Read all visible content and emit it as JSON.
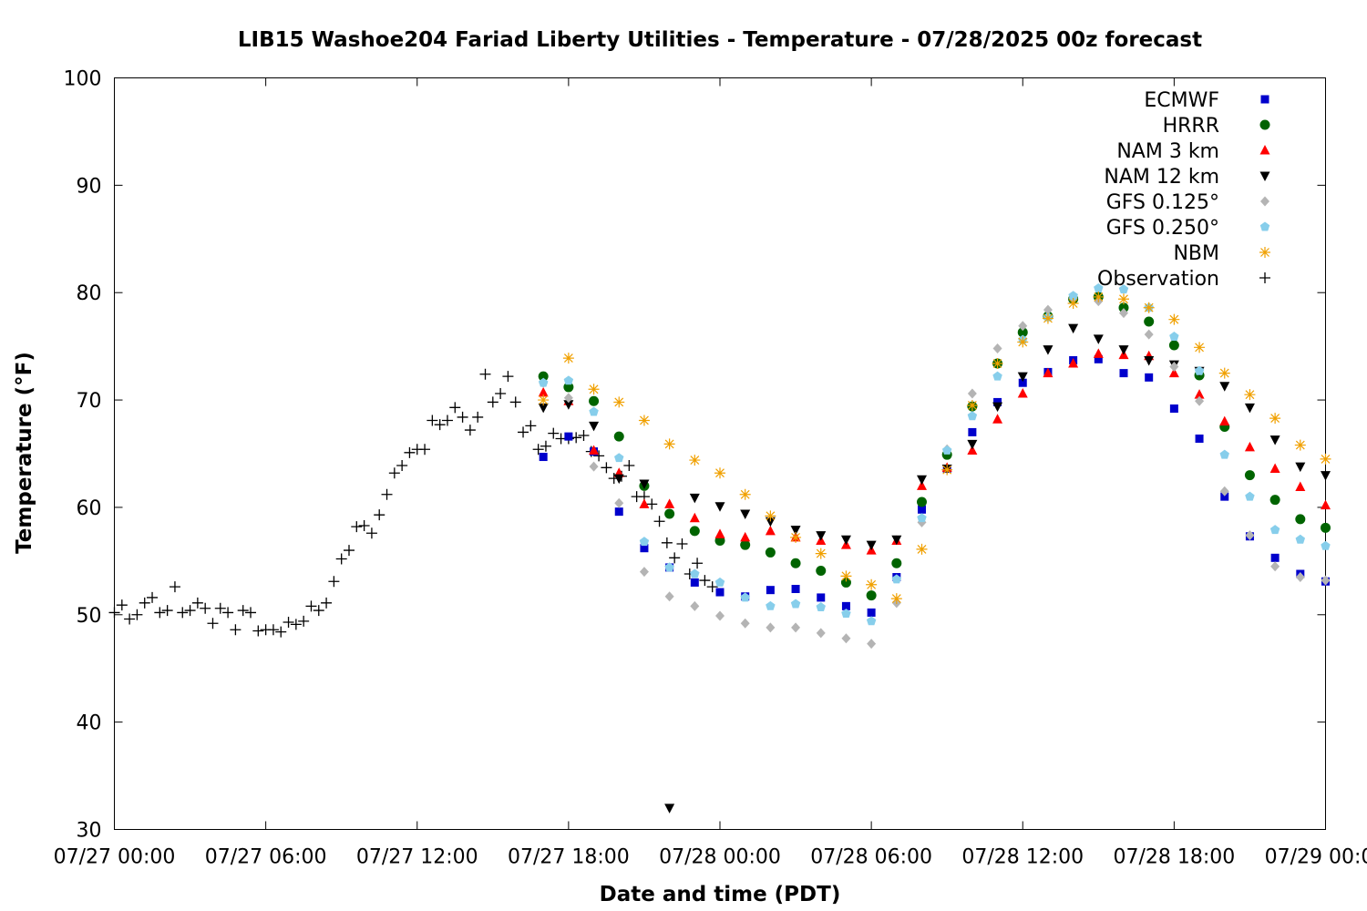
{
  "chart_data": {
    "type": "scatter",
    "title": "LIB15 Washoe204 Fariad Liberty Utilities - Temperature - 07/28/2025 00z forecast",
    "xlabel": "Date and time (PDT)",
    "ylabel": "Temperature (°F)",
    "x_unit": "hours since 07/27 00:00 PDT",
    "xlim": [
      0,
      48
    ],
    "ylim": [
      30,
      100
    ],
    "x_ticks": [
      {
        "value": 0,
        "label": "07/27 00:00"
      },
      {
        "value": 6,
        "label": "07/27 06:00"
      },
      {
        "value": 12,
        "label": "07/27 12:00"
      },
      {
        "value": 18,
        "label": "07/27 18:00"
      },
      {
        "value": 24,
        "label": "07/28 00:00"
      },
      {
        "value": 30,
        "label": "07/28 06:00"
      },
      {
        "value": 36,
        "label": "07/28 12:00"
      },
      {
        "value": 42,
        "label": "07/28 18:00"
      },
      {
        "value": 48,
        "label": "07/29 00:00"
      }
    ],
    "y_ticks": [
      {
        "value": 30,
        "label": "30"
      },
      {
        "value": 40,
        "label": "40"
      },
      {
        "value": 50,
        "label": "50"
      },
      {
        "value": 60,
        "label": "60"
      },
      {
        "value": 70,
        "label": "70"
      },
      {
        "value": 80,
        "label": "80"
      },
      {
        "value": 90,
        "label": "90"
      },
      {
        "value": 100,
        "label": "100"
      }
    ],
    "grid": false,
    "legend_position": "top-right",
    "series": [
      {
        "name": "ECMWF",
        "marker": "square",
        "color": "#0000cc",
        "x": [
          17,
          18,
          19,
          20,
          21,
          22,
          23,
          24,
          25,
          26,
          27,
          28,
          29,
          30,
          31,
          32,
          33,
          34,
          35,
          36,
          37,
          38,
          39,
          40,
          41,
          42,
          43,
          44,
          45,
          46,
          47,
          48
        ],
        "y": [
          64.7,
          66.6,
          65.2,
          59.6,
          56.2,
          54.4,
          53.0,
          52.1,
          51.7,
          52.3,
          52.4,
          51.6,
          50.8,
          50.2,
          53.5,
          59.8,
          63.6,
          67.0,
          69.8,
          71.6,
          72.6,
          73.7,
          73.8,
          72.5,
          72.1,
          69.2,
          66.4,
          61.0,
          57.3,
          55.3,
          53.8,
          53.1
        ]
      },
      {
        "name": "HRRR",
        "marker": "circle",
        "color": "#006400",
        "x": [
          17,
          18,
          19,
          20,
          21,
          22,
          23,
          24,
          25,
          26,
          27,
          28,
          29,
          30,
          31,
          32,
          33,
          34,
          35,
          36,
          37,
          38,
          39,
          40,
          41,
          42,
          43,
          44,
          45,
          46,
          47,
          48
        ],
        "y": [
          72.2,
          71.2,
          69.9,
          66.6,
          62.0,
          59.4,
          57.8,
          56.9,
          56.5,
          55.8,
          54.8,
          54.1,
          53.0,
          51.8,
          54.8,
          60.5,
          64.9,
          69.4,
          73.4,
          76.3,
          77.8,
          79.4,
          79.6,
          78.6,
          77.3,
          75.1,
          72.3,
          67.5,
          63.0,
          60.7,
          58.9,
          58.1
        ]
      },
      {
        "name": "NAM 3 km",
        "marker": "triangle-up",
        "color": "#ff0000",
        "x": [
          17,
          18,
          19,
          20,
          21,
          22,
          23,
          24,
          25,
          26,
          27,
          28,
          29,
          30,
          31,
          32,
          33,
          34,
          35,
          36,
          37,
          38,
          39,
          40,
          41,
          42,
          43,
          44,
          45,
          46,
          47,
          48
        ],
        "y": [
          70.7,
          69.9,
          65.3,
          63.2,
          60.3,
          60.3,
          59.0,
          57.5,
          57.2,
          57.8,
          57.2,
          56.9,
          56.5,
          56.0,
          56.9,
          62.0,
          63.7,
          65.3,
          68.2,
          70.6,
          72.5,
          73.4,
          74.3,
          74.2,
          74.1,
          72.5,
          70.5,
          68.0,
          65.6,
          63.6,
          61.9,
          60.2
        ]
      },
      {
        "name": "NAM 12 km",
        "marker": "triangle-down",
        "color": "#000000",
        "x": [
          17,
          18,
          19,
          20,
          21,
          22,
          23,
          24,
          25,
          26,
          27,
          28,
          29,
          30,
          31,
          32,
          33,
          34,
          35,
          36,
          37,
          38,
          39,
          40,
          41,
          42,
          43,
          44,
          45,
          46,
          47,
          48
        ],
        "y": [
          69.3,
          69.6,
          67.6,
          62.7,
          62.2,
          32.0,
          60.9,
          60.1,
          59.4,
          58.7,
          57.9,
          57.4,
          57.0,
          56.5,
          57.0,
          62.6,
          63.6,
          65.9,
          69.4,
          72.2,
          74.7,
          76.7,
          75.7,
          74.7,
          73.7,
          73.3,
          72.7,
          71.3,
          69.3,
          66.3,
          63.8,
          63.0
        ]
      },
      {
        "name": "GFS 0.125°",
        "marker": "diamond",
        "color": "#b4b4b4",
        "x": [
          17,
          18,
          19,
          20,
          21,
          22,
          23,
          24,
          25,
          26,
          27,
          28,
          29,
          30,
          31,
          32,
          33,
          34,
          35,
          36,
          37,
          38,
          39,
          40,
          41,
          42,
          43,
          44,
          45,
          46,
          47,
          48
        ],
        "y": [
          71.6,
          70.2,
          63.8,
          60.4,
          54.0,
          51.7,
          50.8,
          49.9,
          49.2,
          48.8,
          48.8,
          48.3,
          47.8,
          47.3,
          51.1,
          58.6,
          65.4,
          70.6,
          74.8,
          76.9,
          78.4,
          79.5,
          79.2,
          78.1,
          76.1,
          73.1,
          69.9,
          61.5,
          57.4,
          54.5,
          53.5,
          53.2
        ]
      },
      {
        "name": "GFS 0.250°",
        "marker": "pentagon",
        "color": "#87ceeb",
        "x": [
          17,
          18,
          19,
          20,
          21,
          22,
          23,
          24,
          25,
          26,
          27,
          28,
          29,
          30,
          31,
          32,
          33,
          34,
          35,
          36,
          37,
          38,
          39,
          40,
          41,
          42,
          43,
          44,
          45,
          46,
          47,
          48
        ],
        "y": [
          71.6,
          71.8,
          68.9,
          64.6,
          56.8,
          54.4,
          53.8,
          53.0,
          51.6,
          50.8,
          51.0,
          50.7,
          50.1,
          49.4,
          53.3,
          59.0,
          65.3,
          68.5,
          72.2,
          75.6,
          77.7,
          79.7,
          80.4,
          80.3,
          78.6,
          75.9,
          72.7,
          64.9,
          61.0,
          57.9,
          57.0,
          56.4
        ]
      },
      {
        "name": "NBM",
        "marker": "asterisk",
        "color": "#f0a000",
        "x": [
          17,
          18,
          19,
          20,
          21,
          22,
          23,
          24,
          25,
          26,
          27,
          28,
          29,
          30,
          31,
          32,
          33,
          34,
          35,
          36,
          37,
          38,
          39,
          40,
          41,
          42,
          43,
          44,
          45,
          46,
          47,
          48
        ],
        "y": [
          70.0,
          73.9,
          71.0,
          69.8,
          68.1,
          65.9,
          64.4,
          63.2,
          61.2,
          59.2,
          57.2,
          55.7,
          53.6,
          52.8,
          51.5,
          56.1,
          63.5,
          69.5,
          73.4,
          75.4,
          77.6,
          79.0,
          79.6,
          79.4,
          78.6,
          77.5,
          74.9,
          72.5,
          70.5,
          68.3,
          65.8,
          64.5
        ]
      },
      {
        "name": "Observation",
        "marker": "plus",
        "color": "#000000",
        "x": [
          0.0,
          0.3,
          0.6,
          0.9,
          1.2,
          1.5,
          1.8,
          2.1,
          2.4,
          2.7,
          3.0,
          3.3,
          3.6,
          3.9,
          4.2,
          4.5,
          4.8,
          5.1,
          5.4,
          5.7,
          6.0,
          6.3,
          6.6,
          6.9,
          7.2,
          7.5,
          7.8,
          8.1,
          8.4,
          8.7,
          9.0,
          9.3,
          9.6,
          9.9,
          10.2,
          10.5,
          10.8,
          11.1,
          11.4,
          11.7,
          12.0,
          12.3,
          12.6,
          12.9,
          13.2,
          13.5,
          13.8,
          14.1,
          14.4,
          14.7,
          15.0,
          15.3,
          15.6,
          15.9,
          16.2,
          16.5,
          16.8,
          17.1,
          17.4,
          17.7,
          18.0,
          18.3,
          18.6,
          18.9,
          19.2,
          19.5,
          19.8,
          20.1,
          20.4,
          20.7,
          21.0,
          21.3,
          21.6,
          21.9,
          22.2,
          22.5,
          22.8,
          23.1,
          23.4,
          23.7
        ],
        "y": [
          50.2,
          50.9,
          49.6,
          50.0,
          51.1,
          51.6,
          50.2,
          50.4,
          52.6,
          50.2,
          50.4,
          51.1,
          50.6,
          49.2,
          50.6,
          50.2,
          48.6,
          50.4,
          50.2,
          48.5,
          48.6,
          48.6,
          48.4,
          49.3,
          49.1,
          49.4,
          50.8,
          50.4,
          51.1,
          53.1,
          55.2,
          56.0,
          58.2,
          58.3,
          57.6,
          59.3,
          61.2,
          63.2,
          63.9,
          65.1,
          65.4,
          65.4,
          68.1,
          67.7,
          68.1,
          69.3,
          68.4,
          67.2,
          68.4,
          72.4,
          69.8,
          70.6,
          72.2,
          69.8,
          67.0,
          67.6,
          65.4,
          65.7,
          66.9,
          66.4,
          66.4,
          66.5,
          66.7,
          65.2,
          64.8,
          63.7,
          62.7,
          62.9,
          63.9,
          61.0,
          61.0,
          60.3,
          58.7,
          56.7,
          55.3,
          56.6,
          53.8,
          54.8,
          53.2,
          52.6
        ]
      }
    ]
  }
}
